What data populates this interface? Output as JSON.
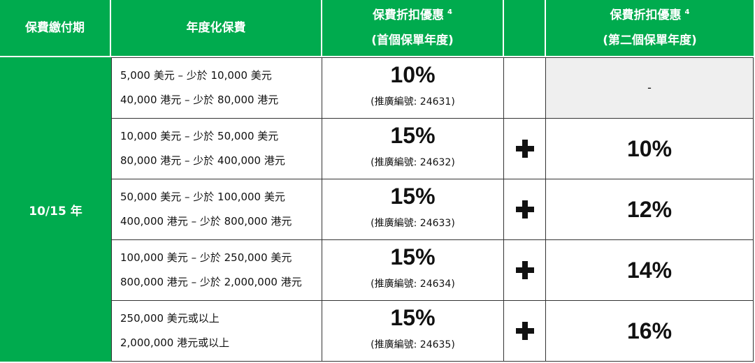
{
  "header": {
    "term": "保費繳付期",
    "annualized_premium": "年度化保費",
    "discount_year1": {
      "title": "保費折扣優惠",
      "note": "4",
      "subtitle": "(首個保單年度)"
    },
    "discount_year2": {
      "title": "保費折扣優惠",
      "note": "4",
      "subtitle": "(第二個保單年度)"
    }
  },
  "term_value": "10/15 年",
  "rows": [
    {
      "usd_range": "5,000 美元 – 少於 10,000 美元",
      "hkd_range": "40,000 港元 – 少於 80,000 港元",
      "year1_discount": "10%",
      "promo_code": "(推廣編號: 24631)",
      "plus_icon": "",
      "year2_discount": "-",
      "year2_shaded": true
    },
    {
      "usd_range": "10,000 美元 – 少於 50,000 美元",
      "hkd_range": "80,000 港元 – 少於 400,000 港元",
      "year1_discount": "15%",
      "promo_code": "(推廣編號: 24632)",
      "plus_icon": "plus-icon",
      "year2_discount": "10%",
      "year2_shaded": false
    },
    {
      "usd_range": "50,000 美元 – 少於 100,000 美元",
      "hkd_range": "400,000 港元 – 少於 800,000 港元",
      "year1_discount": "15%",
      "promo_code": "(推廣編號: 24633)",
      "plus_icon": "plus-icon",
      "year2_discount": "12%",
      "year2_shaded": false
    },
    {
      "usd_range": "100,000 美元 – 少於 250,000 美元",
      "hkd_range": "800,000 港元 – 少於 2,000,000 港元",
      "year1_discount": "15%",
      "promo_code": "(推廣編號: 24634)",
      "plus_icon": "plus-icon",
      "year2_discount": "14%",
      "year2_shaded": false
    },
    {
      "usd_range": "250,000 美元或以上",
      "hkd_range": "2,000,000 港元或以上",
      "year1_discount": "15%",
      "promo_code": "(推廣編號: 24635)",
      "plus_icon": "plus-icon",
      "year2_discount": "16%",
      "year2_shaded": false
    }
  ],
  "colors": {
    "green": "#00ab4e",
    "border": "#333333",
    "shaded_bg": "#efefef",
    "header_text": "#ffffff"
  }
}
